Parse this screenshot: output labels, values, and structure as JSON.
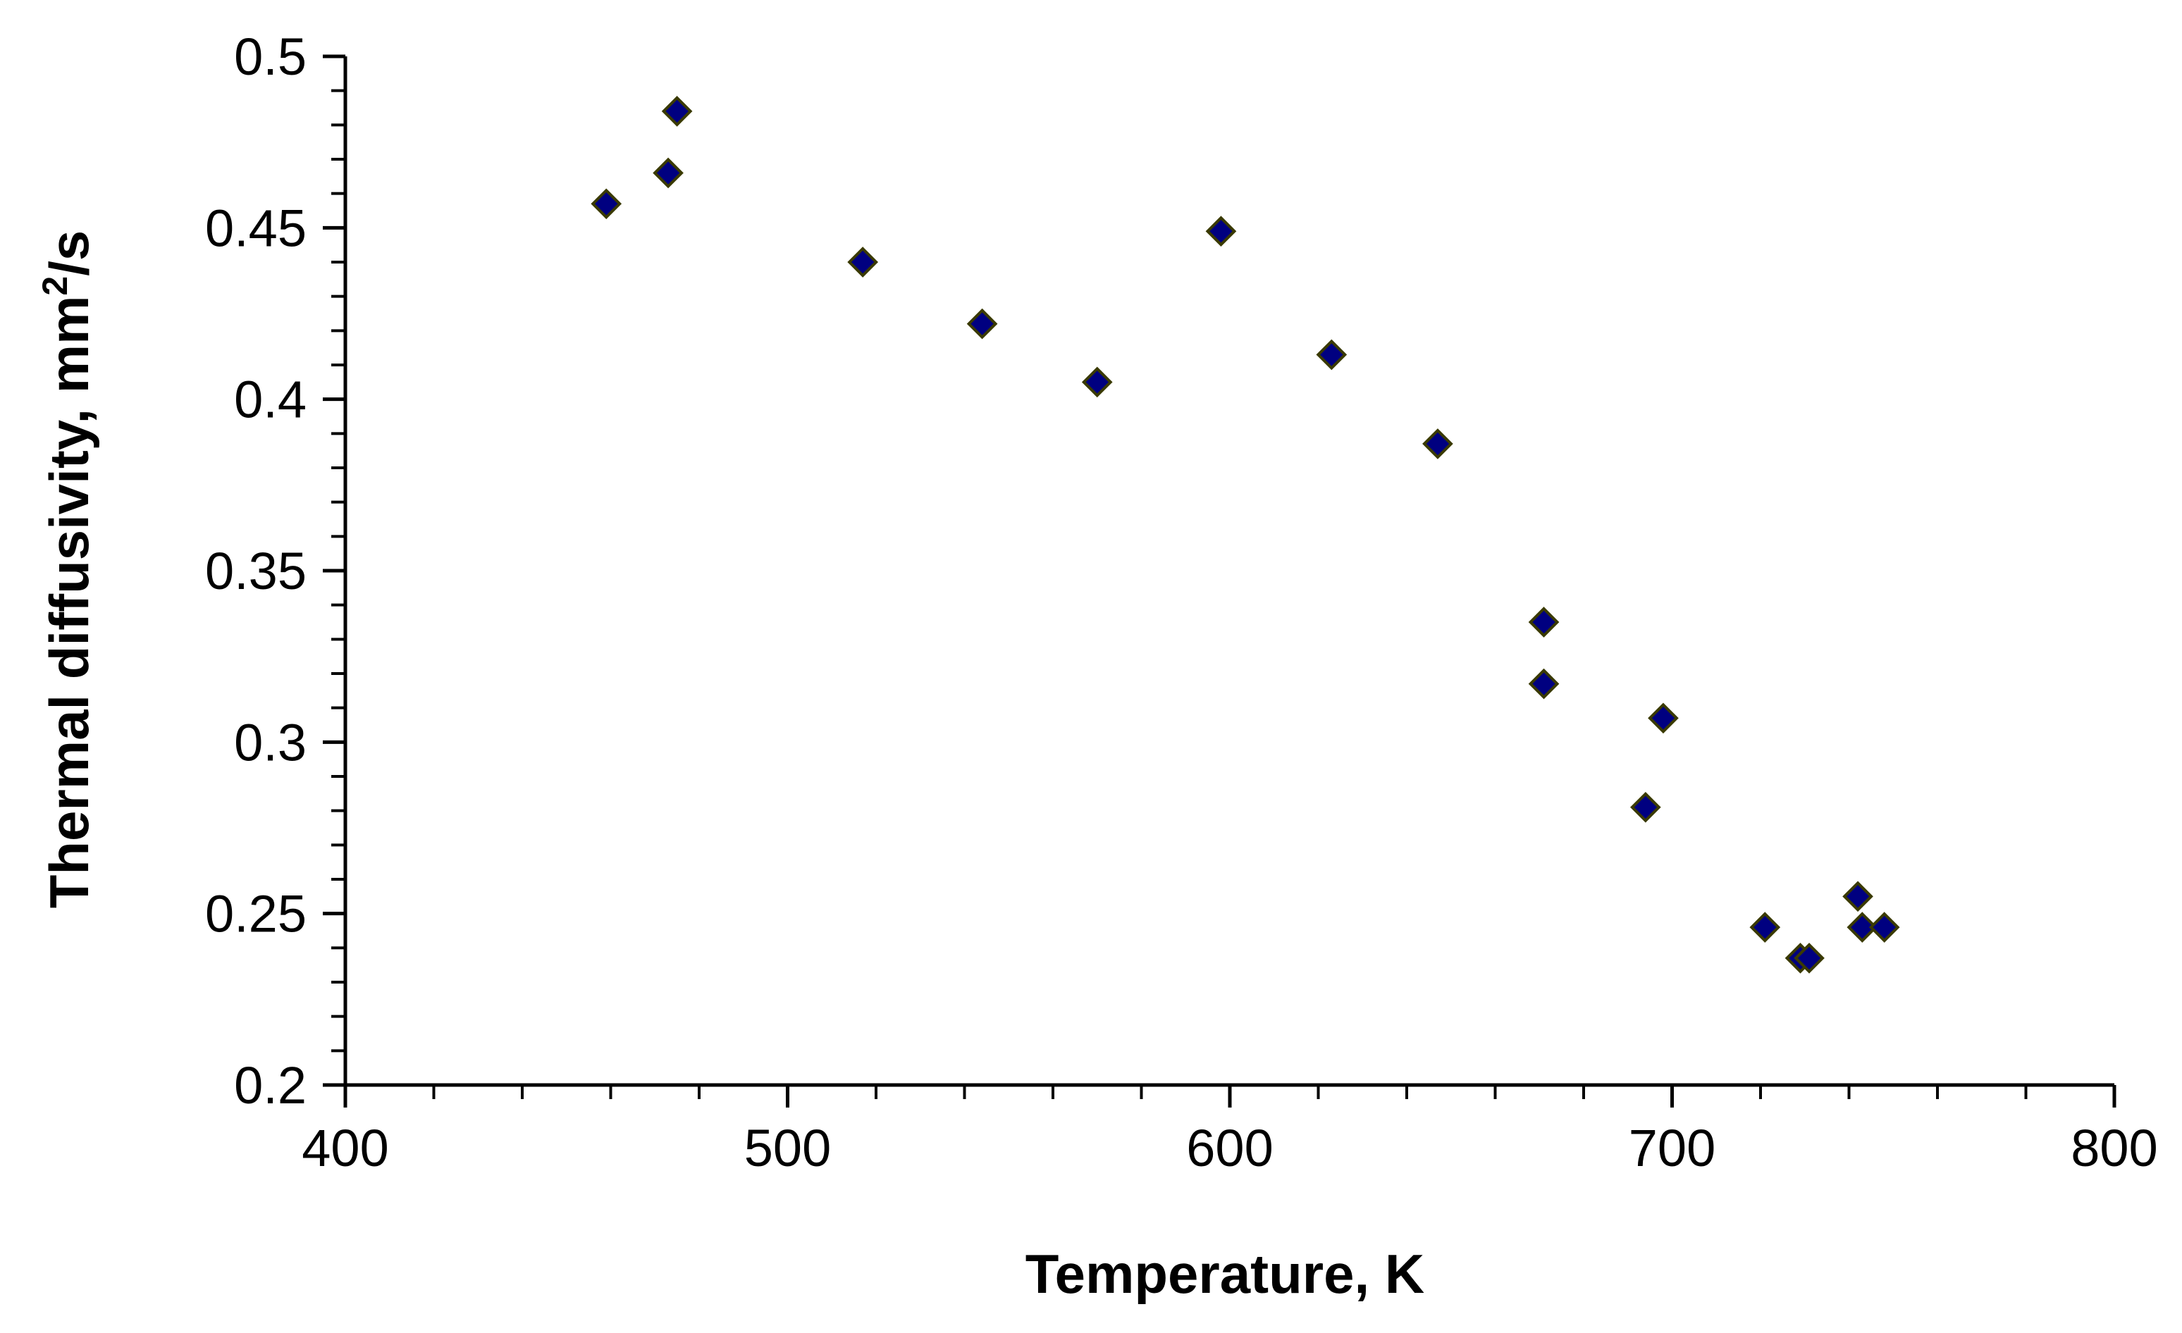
{
  "chart_data": {
    "type": "scatter",
    "title": "",
    "xlabel": "Temperature, K",
    "ylabel": {
      "text": "Thermal diffusivity, mm",
      "superscript": "2",
      "suffix": "/s"
    },
    "xlim": [
      400,
      800
    ],
    "ylim": [
      0.2,
      0.5
    ],
    "x_major_ticks": [
      400,
      500,
      600,
      700,
      800
    ],
    "x_tick_labels": [
      "400",
      "500",
      "600",
      "700",
      "800"
    ],
    "x_minor_step": 20,
    "y_major_ticks": [
      0.2,
      0.25,
      0.3,
      0.35,
      0.4,
      0.45,
      0.5
    ],
    "y_tick_labels": [
      "0.2",
      "0.25",
      "0.3",
      "0.35",
      "0.4",
      "0.45",
      "0.5"
    ],
    "y_minor_step": 0.01,
    "grid": false,
    "legend": "none",
    "marker": "diamond",
    "marker_color": "#000080",
    "marker_edge_color": "#3a3a00",
    "series": [
      {
        "points": [
          {
            "x": 459,
            "y": 0.457
          },
          {
            "x": 473,
            "y": 0.466
          },
          {
            "x": 475,
            "y": 0.484
          },
          {
            "x": 517,
            "y": 0.44
          },
          {
            "x": 544,
            "y": 0.422
          },
          {
            "x": 570,
            "y": 0.405
          },
          {
            "x": 598,
            "y": 0.449
          },
          {
            "x": 623,
            "y": 0.413
          },
          {
            "x": 647,
            "y": 0.387
          },
          {
            "x": 671,
            "y": 0.335
          },
          {
            "x": 671,
            "y": 0.317
          },
          {
            "x": 694,
            "y": 0.281
          },
          {
            "x": 698,
            "y": 0.307
          },
          {
            "x": 721,
            "y": 0.246
          },
          {
            "x": 729,
            "y": 0.237
          },
          {
            "x": 731,
            "y": 0.237
          },
          {
            "x": 742,
            "y": 0.255
          },
          {
            "x": 743,
            "y": 0.246
          },
          {
            "x": 748,
            "y": 0.246
          }
        ]
      }
    ]
  }
}
